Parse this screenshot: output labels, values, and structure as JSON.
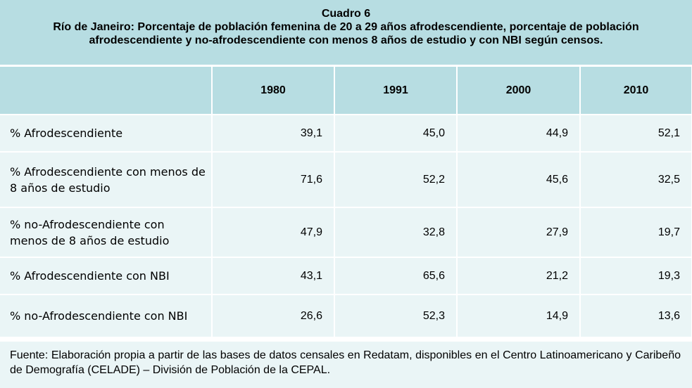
{
  "title": {
    "line1": "Cuadro 6",
    "line2": "Río de Janeiro: Porcentaje de población femenina de 20 a 29 años afrodescendiente, porcentaje de población afrodescendiente y no-afrodescendiente con menos 8 años de estudio y con NBI según censos."
  },
  "table": {
    "headers": [
      "",
      "1980",
      "1991",
      "2000",
      "2010"
    ],
    "rows": [
      {
        "label": "% Afrodescendiente",
        "values": [
          "39,1",
          "45,0",
          "44,9",
          "52,1"
        ]
      },
      {
        "label": "% Afrodescendiente con menos de 8 años de estudio",
        "values": [
          "71,6",
          "52,2",
          "45,6",
          "32,5"
        ]
      },
      {
        "label": "% no-Afrodescendiente con menos de 8 años de estudio",
        "values": [
          "47,9",
          "32,8",
          "27,9",
          "19,7"
        ]
      },
      {
        "label": "% Afrodescendiente con NBI",
        "values": [
          "43,1",
          "65,6",
          "21,2",
          "19,3"
        ]
      },
      {
        "label": "% no-Afrodescendiente con NBI",
        "values": [
          "26,6",
          "52,3",
          "14,9",
          "13,6"
        ]
      }
    ]
  },
  "footer": {
    "text": "Fuente: Elaboración propia a partir de las bases de datos censales en Redatam, disponibles en el Centro Latinoamericano y Caribeño de Demografía (CELADE) – División de Población de la CEPAL."
  },
  "colors": {
    "header_bg": "#b7dde2",
    "row_bg": "#eaf5f6"
  }
}
